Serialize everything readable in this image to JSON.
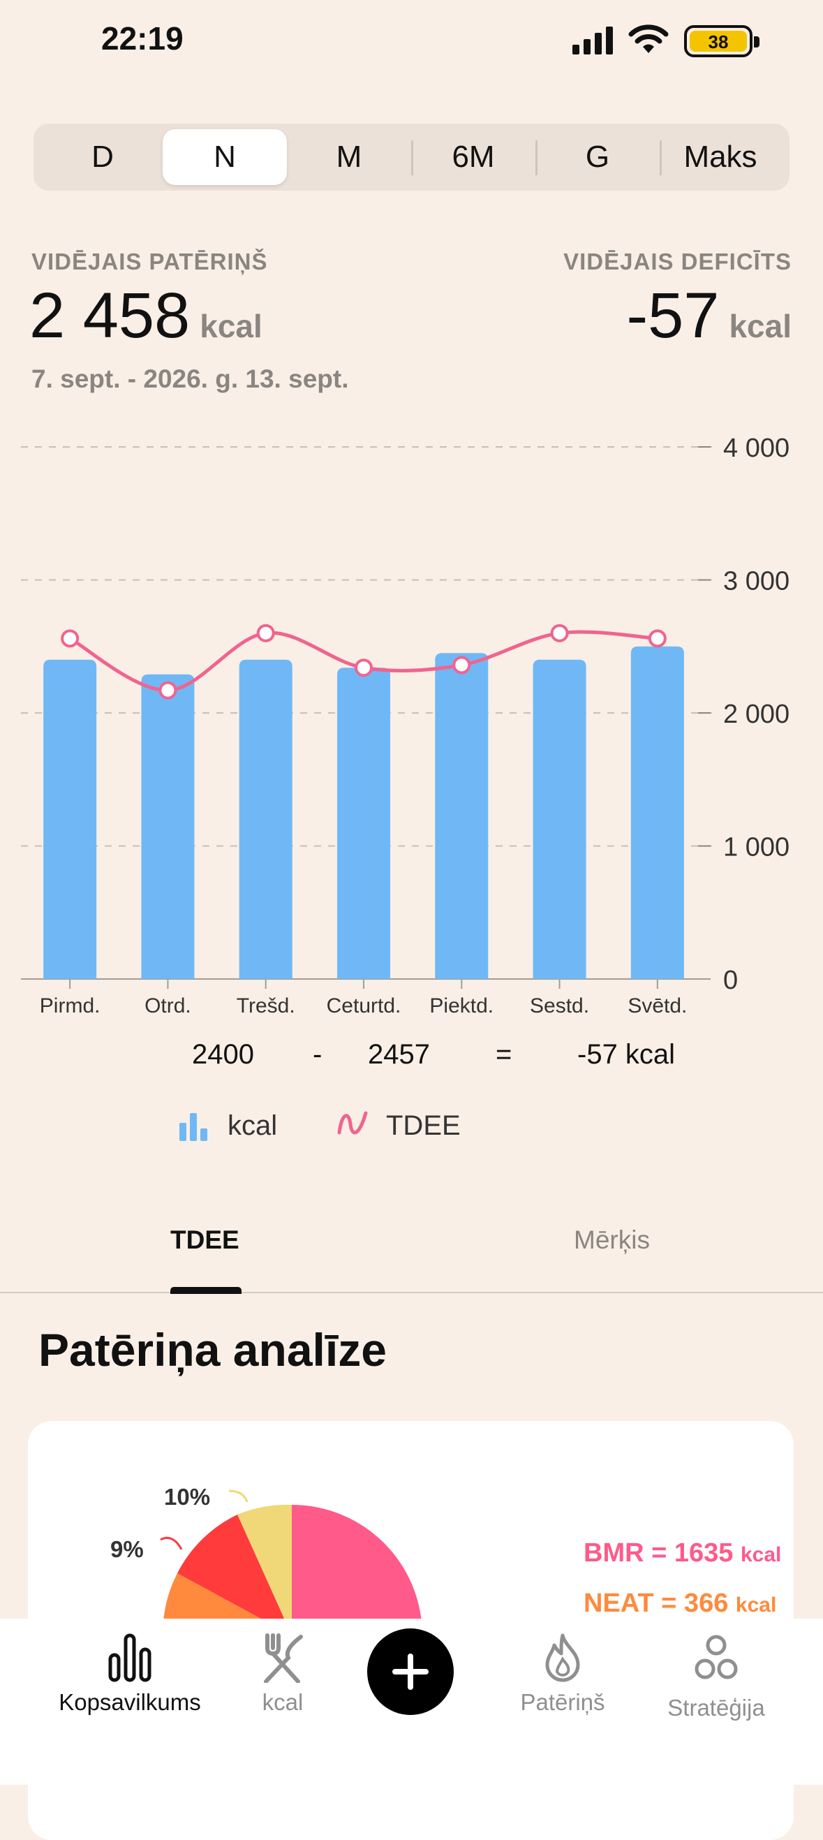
{
  "status_bar": {
    "time": "22:19",
    "battery": "38"
  },
  "period_selector": {
    "options": [
      "D",
      "N",
      "M",
      "6M",
      "G",
      "Maks"
    ],
    "selected": "N"
  },
  "summary": {
    "avg_intake_label": "VIDĒJAIS PATĒRIŅŠ",
    "avg_intake_value": "2 458",
    "avg_intake_unit": "kcal",
    "avg_deficit_label": "VIDĒJAIS DEFICĪTS",
    "avg_deficit_value": "-57",
    "avg_deficit_unit": "kcal",
    "date_range": "7. sept. - 2026. g. 13. sept."
  },
  "chart_data": {
    "type": "bar",
    "categories": [
      "Pirmd.",
      "Otrd.",
      "Trešd.",
      "Ceturtd.",
      "Piektd.",
      "Sestd.",
      "Svētd."
    ],
    "series": [
      {
        "name": "kcal",
        "type": "bar",
        "color": "#6fb8f5",
        "values": [
          2400,
          2290,
          2400,
          2340,
          2450,
          2400,
          2500
        ]
      },
      {
        "name": "TDEE",
        "type": "line",
        "color": "#f0648f",
        "values": [
          2560,
          2170,
          2600,
          2340,
          2360,
          2600,
          2560
        ]
      }
    ],
    "y_ticks": [
      "4 000",
      "3 000",
      "2 000",
      "1 000",
      "0"
    ],
    "y_tick_values": [
      4000,
      3000,
      2000,
      1000,
      0
    ],
    "ylim": [
      0,
      4000
    ],
    "grid": true
  },
  "equation": {
    "intake": "2400",
    "minus": "-",
    "tdee": "2457",
    "equals": "=",
    "result": "-57 kcal"
  },
  "legend": {
    "bar_label": "kcal",
    "line_label": "TDEE"
  },
  "tabs": {
    "items": [
      "TDEE",
      "Mērķis"
    ],
    "selected": "TDEE"
  },
  "analysis": {
    "title": "Patēriņa analīze",
    "pct_a": "10%",
    "pct_b": "9%",
    "bmr_label": "BMR = 1635",
    "bmr_unit": "kcal",
    "neat_label": "NEAT = 366",
    "neat_unit": "kcal",
    "colors": {
      "bmr": "#ff5a8a",
      "neat": "#ff8a3d",
      "red": "#ff3b3b",
      "yellow": "#f0d878"
    }
  },
  "bottom_nav": {
    "items": [
      "Kopsavilkums",
      "kcal",
      "Patēriņš",
      "Stratēģija"
    ],
    "selected": "Kopsavilkums"
  }
}
